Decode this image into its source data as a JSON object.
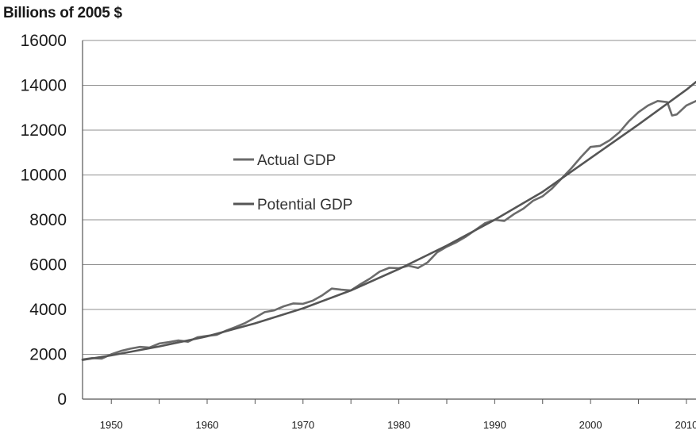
{
  "chart_data": {
    "type": "line",
    "title": "",
    "ylabel": "Billions of 2005 $",
    "xlabel": "",
    "xlim": [
      1947,
      2011
    ],
    "ylim": [
      0,
      16000
    ],
    "grid": true,
    "legend_position": "upper-left",
    "y_ticks": [
      "0",
      "2000",
      "4000",
      "6000",
      "8000",
      "10000",
      "12000",
      "14000",
      "16000"
    ],
    "x_ticks": [
      "1950",
      "1960",
      "1970",
      "1980",
      "1990",
      "2000",
      "2010"
    ],
    "series": [
      {
        "name": "Actual GDP",
        "color": "#6b6b6b",
        "x": [
          1947,
          1948,
          1949,
          1950,
          1951,
          1952,
          1953,
          1954,
          1955,
          1956,
          1957,
          1958,
          1959,
          1960,
          1961,
          1962,
          1963,
          1964,
          1965,
          1966,
          1967,
          1968,
          1969,
          1970,
          1971,
          1972,
          1973,
          1974,
          1975,
          1976,
          1977,
          1978,
          1979,
          1980,
          1981,
          1982,
          1983,
          1984,
          1985,
          1986,
          1987,
          1988,
          1989,
          1990,
          1991,
          1992,
          1993,
          1994,
          1995,
          1996,
          1997,
          1998,
          1999,
          2000,
          2001,
          2002,
          2003,
          2004,
          2005,
          2006,
          2007,
          2008,
          2008.5,
          2009,
          2010,
          2011
        ],
        "values": [
          1770,
          1830,
          1810,
          2000,
          2150,
          2250,
          2330,
          2300,
          2480,
          2540,
          2620,
          2560,
          2760,
          2820,
          2870,
          3060,
          3220,
          3400,
          3640,
          3880,
          3960,
          4140,
          4270,
          4250,
          4390,
          4630,
          4930,
          4880,
          4850,
          5130,
          5380,
          5690,
          5860,
          5840,
          5950,
          5850,
          6100,
          6550,
          6800,
          7000,
          7250,
          7550,
          7850,
          8000,
          7950,
          8250,
          8500,
          8850,
          9050,
          9400,
          9850,
          10300,
          10800,
          11250,
          11300,
          11550,
          11900,
          12400,
          12800,
          13100,
          13300,
          13250,
          12650,
          12700,
          13100,
          13300
        ]
      },
      {
        "name": "Potential GDP",
        "color": "#555555",
        "x": [
          1947,
          1950,
          1955,
          1960,
          1965,
          1970,
          1975,
          1980,
          1985,
          1990,
          1995,
          2000,
          2005,
          2010,
          2011
        ],
        "values": [
          1750,
          1950,
          2350,
          2800,
          3380,
          4050,
          4850,
          5800,
          6850,
          8000,
          9250,
          10750,
          12250,
          13800,
          14150
        ]
      }
    ]
  }
}
